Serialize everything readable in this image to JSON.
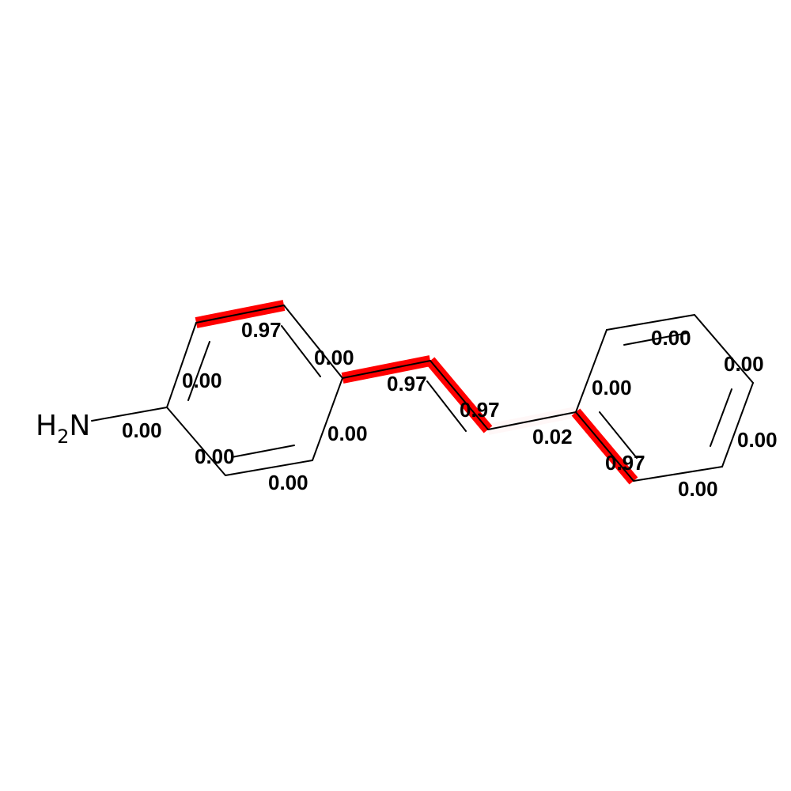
{
  "diagram": {
    "type": "molecule-bond-attribution",
    "molecule": "4-aminostilbene",
    "highlight_color": "#ff0000",
    "atoms": [
      {
        "id": "amine",
        "symbol": "H",
        "subscript": "2",
        "suffix": "N"
      }
    ],
    "bond_labels": [
      "0.97",
      "0.00",
      "0.00",
      "0.00",
      "0.00",
      "0.00",
      "0.00",
      "0.97",
      "0.97",
      "0.02",
      "0.00",
      "0.00",
      "0.00",
      "0.00",
      "0.00",
      "0.97"
    ],
    "highlights": [
      {
        "bond": "ring1-top",
        "weight": 0.97
      },
      {
        "bond": "vinyl-1",
        "weight": 0.97
      },
      {
        "bond": "vinyl-2",
        "weight": 0.97
      },
      {
        "bond": "vinyl-phenyl",
        "weight": 0.02
      },
      {
        "bond": "ring2-lower-left",
        "weight": 0.97
      }
    ]
  }
}
